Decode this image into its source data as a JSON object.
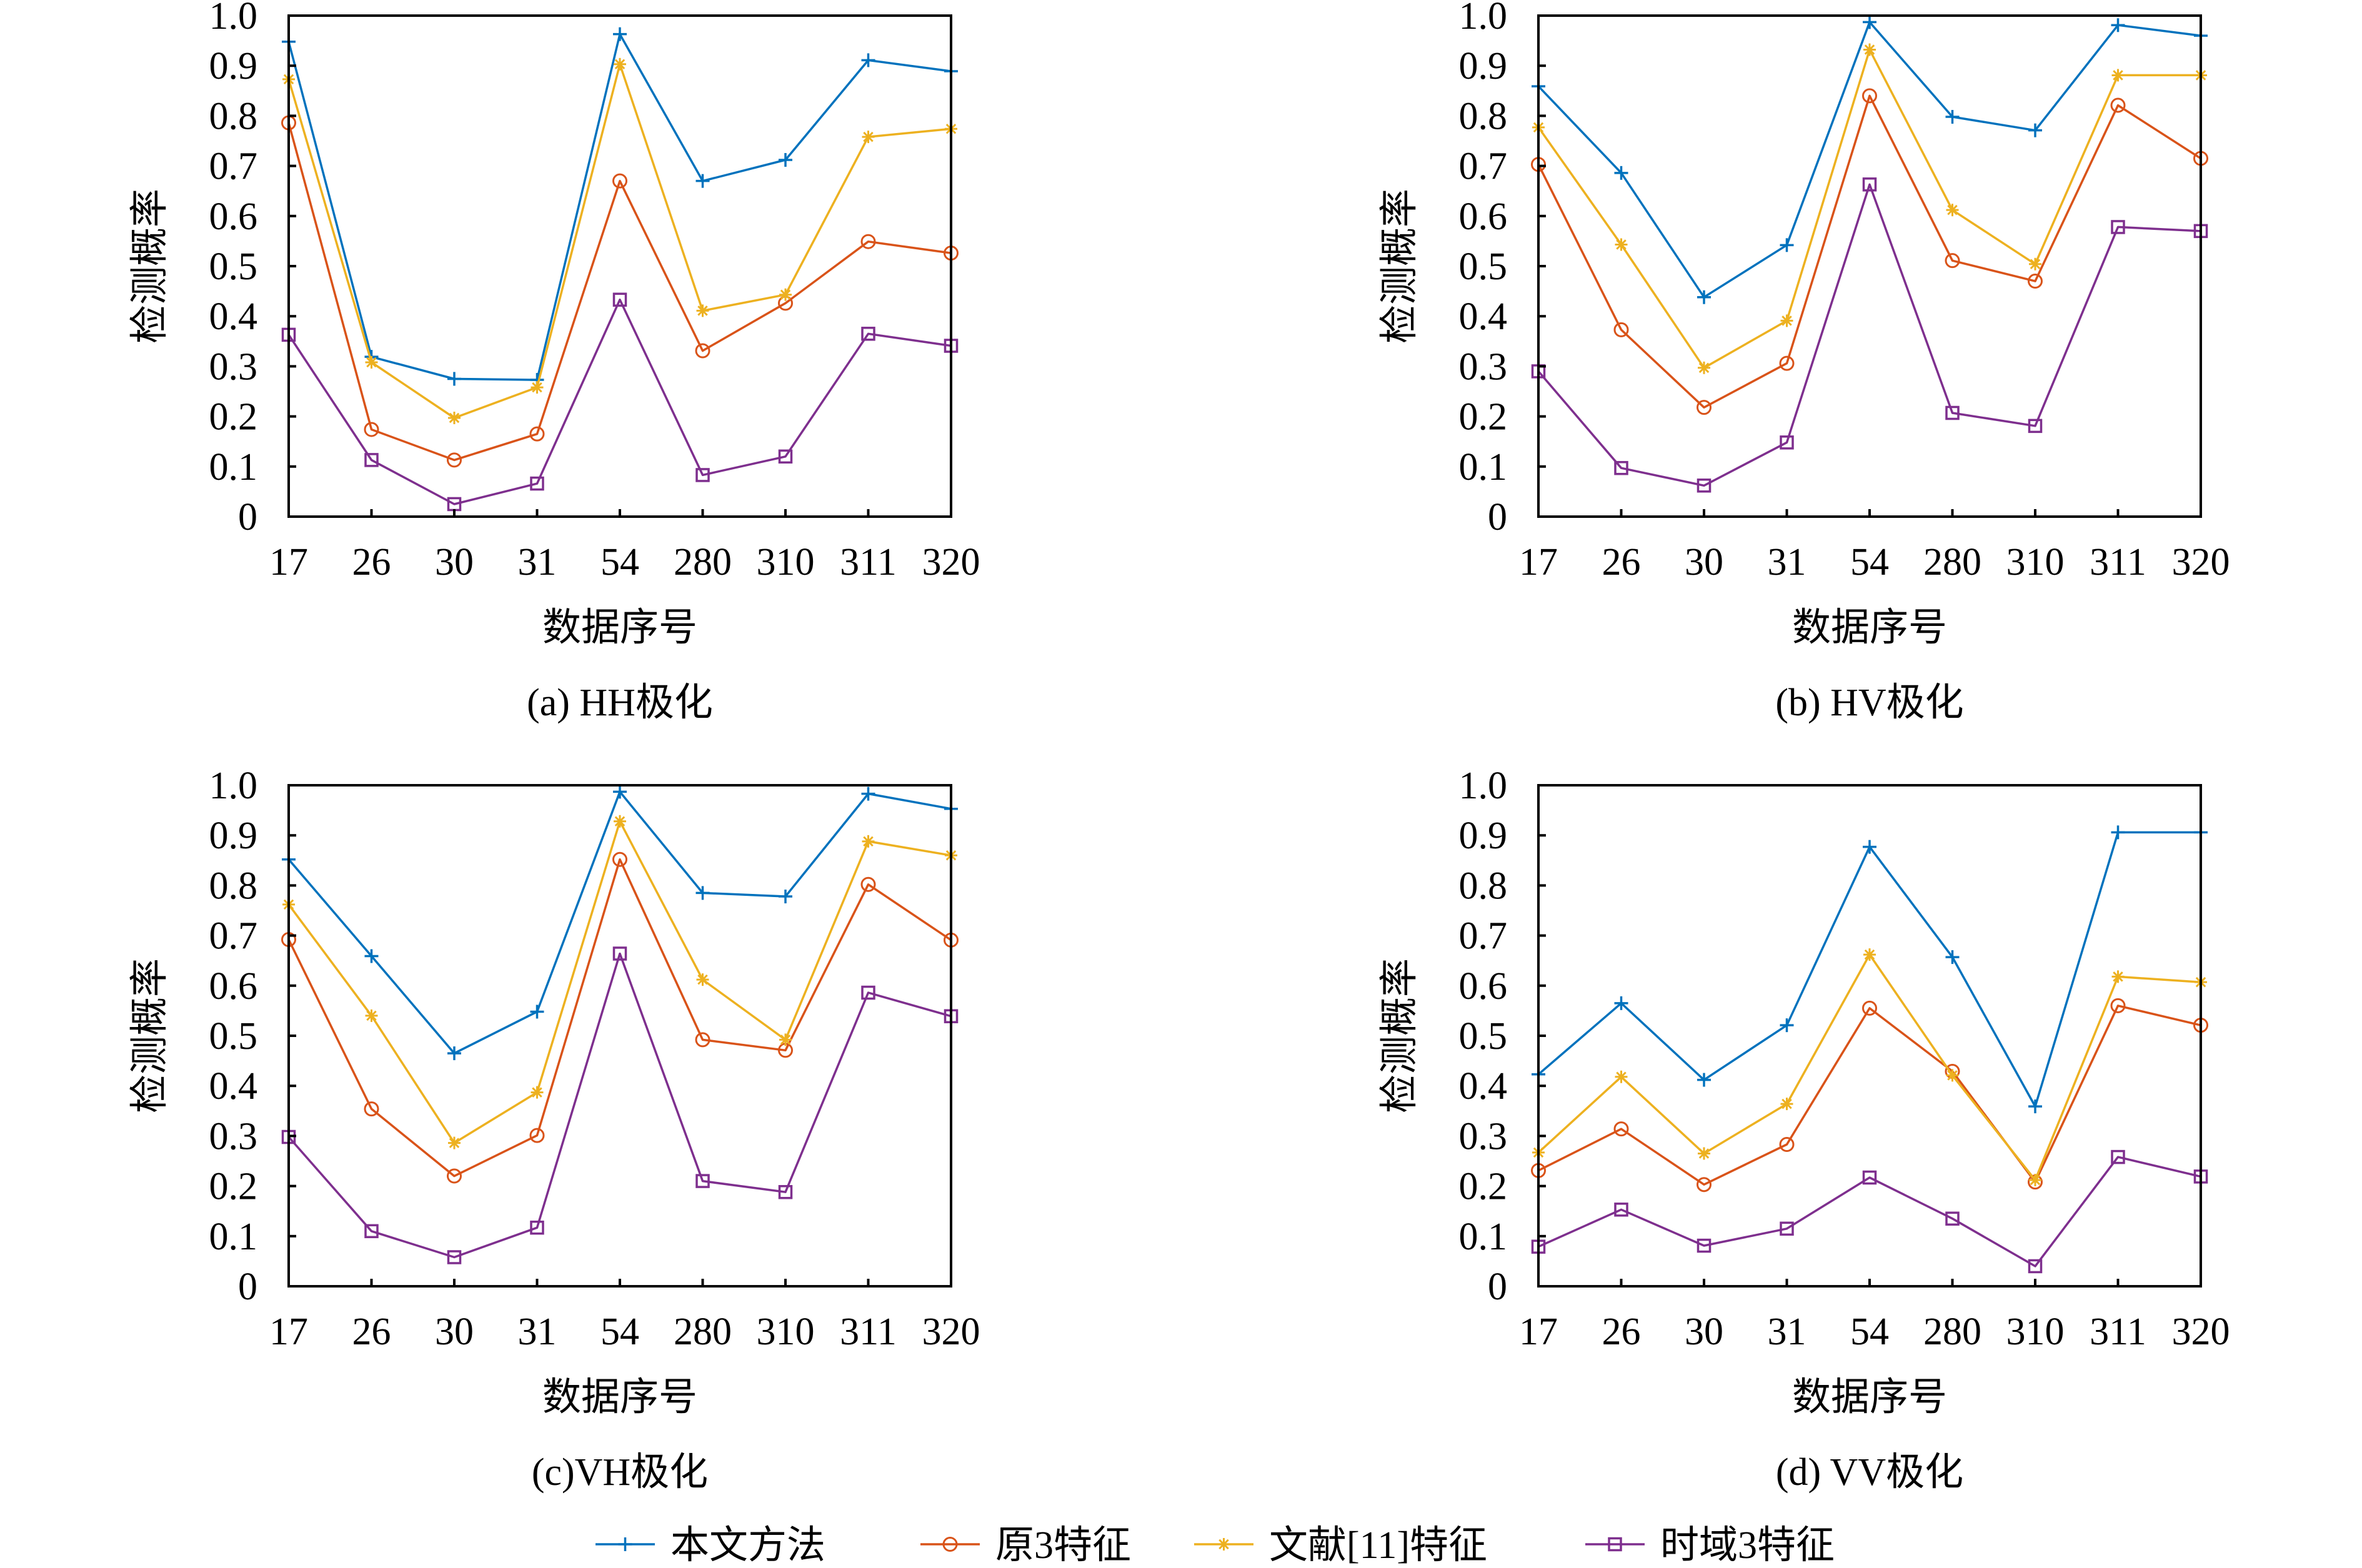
{
  "legend": {
    "position": "bottom-center",
    "entries": [
      {
        "label": "本文方法",
        "color": "#0072BD",
        "marker": "plus"
      },
      {
        "label": "原3特征",
        "color": "#D95319",
        "marker": "circle"
      },
      {
        "label": "文献[11]特征",
        "color": "#EDB120",
        "marker": "asterisk"
      },
      {
        "label": "时域3特征",
        "color": "#7E2F8E",
        "marker": "square"
      }
    ]
  },
  "chart_data": [
    {
      "type": "line",
      "title": "(a) HH极化",
      "xlabel": "数据序号",
      "ylabel": "检测概率",
      "categories": [
        "17",
        "26",
        "30",
        "31",
        "54",
        "280",
        "310",
        "311",
        "320"
      ],
      "ylim": [
        0,
        1
      ],
      "yticks": [
        0,
        0.1,
        0.2,
        0.3,
        0.4,
        0.5,
        0.6,
        0.7,
        0.8,
        0.9,
        1.0
      ],
      "yticklabels": [
        "0",
        "0.1",
        "0.2",
        "0.3",
        "0.4",
        "0.5",
        "0.6",
        "0.7",
        "0.8",
        "0.9",
        "1.0"
      ],
      "grid": false,
      "series": [
        {
          "name": "本文方法",
          "color": "#0072BD",
          "marker": "plus",
          "values": [
            0.948,
            0.319,
            0.275,
            0.273,
            0.963,
            0.67,
            0.712,
            0.911,
            0.889
          ]
        },
        {
          "name": "原3特征",
          "color": "#D95319",
          "marker": "circle",
          "values": [
            0.786,
            0.174,
            0.113,
            0.165,
            0.67,
            0.331,
            0.426,
            0.549,
            0.526
          ]
        },
        {
          "name": "文献[11]特征",
          "color": "#EDB120",
          "marker": "asterisk",
          "values": [
            0.873,
            0.308,
            0.197,
            0.258,
            0.903,
            0.411,
            0.443,
            0.758,
            0.774
          ]
        },
        {
          "name": "时域3特征",
          "color": "#7E2F8E",
          "marker": "square",
          "values": [
            0.363,
            0.113,
            0.025,
            0.066,
            0.433,
            0.083,
            0.12,
            0.365,
            0.341
          ]
        }
      ]
    },
    {
      "type": "line",
      "title": "(b) HV极化",
      "xlabel": "数据序号",
      "ylabel": "检测概率",
      "categories": [
        "17",
        "26",
        "30",
        "31",
        "54",
        "280",
        "310",
        "311",
        "320"
      ],
      "ylim": [
        0,
        1
      ],
      "yticks": [
        0,
        0.1,
        0.2,
        0.3,
        0.4,
        0.5,
        0.6,
        0.7,
        0.8,
        0.9,
        1.0
      ],
      "yticklabels": [
        "0",
        "0.1",
        "0.2",
        "0.3",
        "0.4",
        "0.5",
        "0.6",
        "0.7",
        "0.8",
        "0.9",
        "1.0"
      ],
      "grid": false,
      "series": [
        {
          "name": "本文方法",
          "color": "#0072BD",
          "marker": "plus",
          "values": [
            0.859,
            0.686,
            0.438,
            0.542,
            0.987,
            0.798,
            0.771,
            0.981,
            0.96
          ]
        },
        {
          "name": "原3特征",
          "color": "#D95319",
          "marker": "circle",
          "values": [
            0.703,
            0.373,
            0.218,
            0.306,
            0.84,
            0.511,
            0.47,
            0.821,
            0.715
          ]
        },
        {
          "name": "文献[11]特征",
          "color": "#EDB120",
          "marker": "asterisk",
          "values": [
            0.777,
            0.543,
            0.297,
            0.391,
            0.932,
            0.612,
            0.504,
            0.881,
            0.881
          ]
        },
        {
          "name": "时域3特征",
          "color": "#7E2F8E",
          "marker": "square",
          "values": [
            0.29,
            0.097,
            0.062,
            0.148,
            0.663,
            0.207,
            0.181,
            0.578,
            0.57
          ]
        }
      ]
    },
    {
      "type": "line",
      "title": "(c)VH极化",
      "xlabel": "数据序号",
      "ylabel": "检测概率",
      "categories": [
        "17",
        "26",
        "30",
        "31",
        "54",
        "280",
        "310",
        "311",
        "320"
      ],
      "ylim": [
        0,
        1
      ],
      "yticks": [
        0,
        0.1,
        0.2,
        0.3,
        0.4,
        0.5,
        0.6,
        0.7,
        0.8,
        0.9,
        1.0
      ],
      "yticklabels": [
        "0",
        "0.1",
        "0.2",
        "0.3",
        "0.4",
        "0.5",
        "0.6",
        "0.7",
        "0.8",
        "0.9",
        "1.0"
      ],
      "grid": false,
      "series": [
        {
          "name": "本文方法",
          "color": "#0072BD",
          "marker": "plus",
          "values": [
            0.852,
            0.659,
            0.465,
            0.548,
            0.987,
            0.785,
            0.778,
            0.983,
            0.953
          ]
        },
        {
          "name": "原3特征",
          "color": "#D95319",
          "marker": "circle",
          "values": [
            0.692,
            0.354,
            0.22,
            0.301,
            0.852,
            0.492,
            0.471,
            0.802,
            0.691
          ]
        },
        {
          "name": "文献[11]特征",
          "color": "#EDB120",
          "marker": "asterisk",
          "values": [
            0.762,
            0.54,
            0.286,
            0.387,
            0.928,
            0.612,
            0.492,
            0.888,
            0.86
          ]
        },
        {
          "name": "时域3特征",
          "color": "#7E2F8E",
          "marker": "square",
          "values": [
            0.298,
            0.11,
            0.058,
            0.117,
            0.664,
            0.21,
            0.188,
            0.586,
            0.539
          ]
        }
      ]
    },
    {
      "type": "line",
      "title": "(d) VV极化",
      "xlabel": "数据序号",
      "ylabel": "检测概率",
      "categories": [
        "17",
        "26",
        "30",
        "31",
        "54",
        "280",
        "310",
        "311",
        "320"
      ],
      "ylim": [
        0,
        1
      ],
      "yticks": [
        0,
        0.1,
        0.2,
        0.3,
        0.4,
        0.5,
        0.6,
        0.7,
        0.8,
        0.9,
        1.0
      ],
      "yticklabels": [
        "0",
        "0.1",
        "0.2",
        "0.3",
        "0.4",
        "0.5",
        "0.6",
        "0.7",
        "0.8",
        "0.9",
        "1.0"
      ],
      "grid": false,
      "series": [
        {
          "name": "本文方法",
          "color": "#0072BD",
          "marker": "plus",
          "values": [
            0.423,
            0.565,
            0.412,
            0.521,
            0.877,
            0.657,
            0.359,
            0.906,
            0.906
          ]
        },
        {
          "name": "原3特征",
          "color": "#D95319",
          "marker": "circle",
          "values": [
            0.231,
            0.314,
            0.203,
            0.283,
            0.555,
            0.429,
            0.208,
            0.56,
            0.521
          ]
        },
        {
          "name": "文献[11]特征",
          "color": "#EDB120",
          "marker": "asterisk",
          "values": [
            0.267,
            0.418,
            0.265,
            0.364,
            0.662,
            0.421,
            0.212,
            0.618,
            0.607
          ]
        },
        {
          "name": "时域3特征",
          "color": "#7E2F8E",
          "marker": "square",
          "values": [
            0.079,
            0.153,
            0.081,
            0.115,
            0.217,
            0.135,
            0.04,
            0.258,
            0.219
          ]
        }
      ]
    }
  ]
}
